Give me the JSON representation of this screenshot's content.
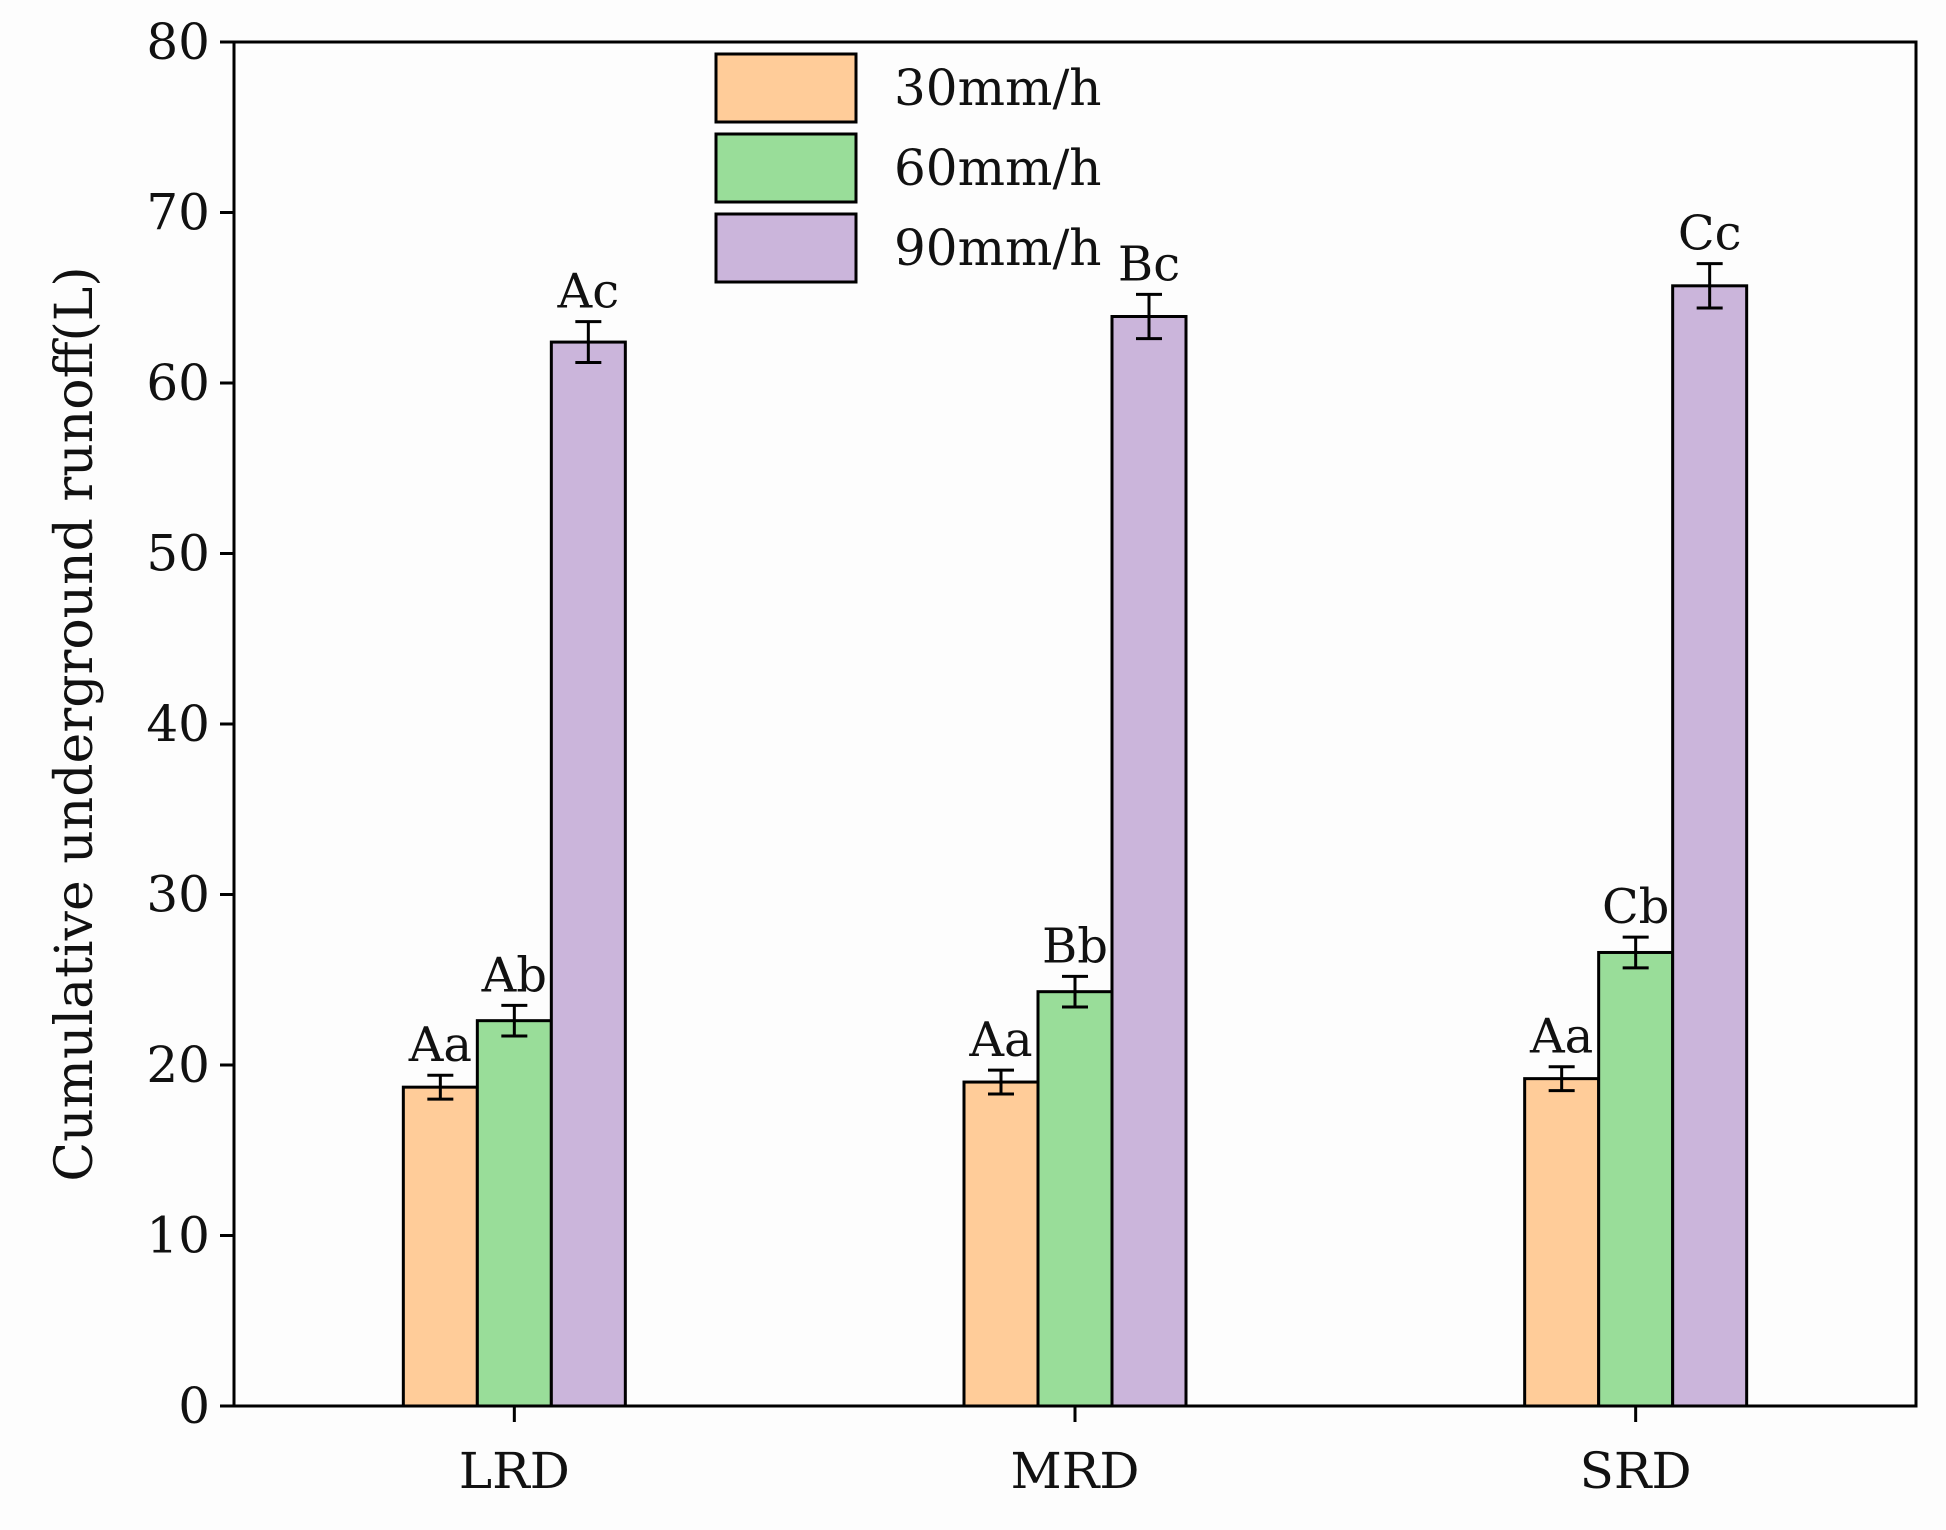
{
  "chart_data": {
    "type": "bar",
    "title": "",
    "xlabel": "",
    "ylabel": "Cumulative underground runoff(L)",
    "ylim": [
      0,
      80
    ],
    "yticks": [
      0,
      10,
      20,
      30,
      40,
      50,
      60,
      70,
      80
    ],
    "grid": false,
    "legend_position": "top-center",
    "categories": [
      "LRD",
      "MRD",
      "SRD"
    ],
    "series": [
      {
        "name": "30mm/h",
        "color": "#FFCC99",
        "values": [
          18.7,
          19.0,
          19.2
        ],
        "errors": [
          0.7,
          0.7,
          0.7
        ],
        "labels": [
          "Aa",
          "Aa",
          "Aa"
        ]
      },
      {
        "name": "60mm/h",
        "color": "#99DD99",
        "values": [
          22.6,
          24.3,
          26.6
        ],
        "errors": [
          0.9,
          0.9,
          0.9
        ],
        "labels": [
          "Ab",
          "Bb",
          "Cb"
        ]
      },
      {
        "name": "90mm/h",
        "color": "#CBB5DB",
        "values": [
          62.4,
          63.9,
          65.7
        ],
        "errors": [
          1.2,
          1.3,
          1.3
        ],
        "labels": [
          "Ac",
          "Bc",
          "Cc"
        ]
      }
    ]
  }
}
